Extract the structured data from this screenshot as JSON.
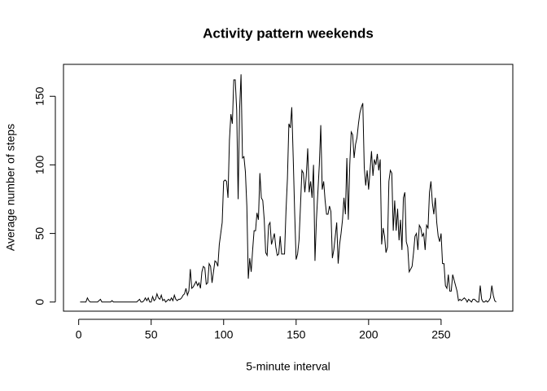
{
  "chart_data": {
    "type": "line",
    "title": "Activity pattern weekends",
    "x_label": "5-minute interval",
    "y_label": "Average number of steps",
    "color": "#000000",
    "x": [
      1,
      2,
      3,
      4,
      5,
      6,
      7,
      8,
      9,
      10,
      11,
      12,
      13,
      14,
      15,
      16,
      17,
      18,
      19,
      20,
      21,
      22,
      23,
      24,
      25,
      26,
      27,
      28,
      29,
      30,
      31,
      32,
      33,
      34,
      35,
      36,
      37,
      38,
      39,
      40,
      41,
      42,
      43,
      44,
      45,
      46,
      47,
      48,
      49,
      50,
      51,
      52,
      53,
      54,
      55,
      56,
      57,
      58,
      59,
      60,
      61,
      62,
      63,
      64,
      65,
      66,
      67,
      68,
      69,
      70,
      71,
      72,
      73,
      74,
      75,
      76,
      77,
      78,
      79,
      80,
      81,
      82,
      83,
      84,
      85,
      86,
      87,
      88,
      89,
      90,
      91,
      92,
      93,
      94,
      95,
      96,
      97,
      98,
      99,
      100,
      101,
      102,
      103,
      104,
      105,
      106,
      107,
      108,
      109,
      110,
      111,
      112,
      113,
      114,
      115,
      116,
      117,
      118,
      119,
      120,
      121,
      122,
      123,
      124,
      125,
      126,
      127,
      128,
      129,
      130,
      131,
      132,
      133,
      134,
      135,
      136,
      137,
      138,
      139,
      140,
      141,
      142,
      143,
      144,
      145,
      146,
      147,
      148,
      149,
      150,
      151,
      152,
      153,
      154,
      155,
      156,
      157,
      158,
      159,
      160,
      161,
      162,
      163,
      164,
      165,
      166,
      167,
      168,
      169,
      170,
      171,
      172,
      173,
      174,
      175,
      176,
      177,
      178,
      179,
      180,
      181,
      182,
      183,
      184,
      185,
      186,
      187,
      188,
      189,
      190,
      191,
      192,
      193,
      194,
      195,
      196,
      197,
      198,
      199,
      200,
      201,
      202,
      203,
      204,
      205,
      206,
      207,
      208,
      209,
      210,
      211,
      212,
      213,
      214,
      215,
      216,
      217,
      218,
      219,
      220,
      221,
      222,
      223,
      224,
      225,
      226,
      227,
      228,
      229,
      230,
      231,
      232,
      233,
      234,
      235,
      236,
      237,
      238,
      239,
      240,
      241,
      242,
      243,
      244,
      245,
      246,
      247,
      248,
      249,
      250,
      251,
      252,
      253,
      254,
      255,
      256,
      257,
      258,
      259,
      260,
      261,
      262,
      263,
      264,
      265,
      266,
      267,
      268,
      269,
      270,
      271,
      272,
      273,
      274,
      275,
      276,
      277,
      278,
      279,
      280,
      281,
      282,
      283,
      284,
      285,
      286,
      287,
      288
    ],
    "values": [
      0,
      0,
      0,
      0,
      0,
      3,
      1,
      0,
      0,
      0,
      0,
      0,
      0,
      1,
      2,
      0,
      0,
      0,
      0,
      0,
      0,
      0,
      1,
      0,
      0,
      0,
      0,
      0,
      0,
      0,
      0,
      0,
      0,
      0,
      0,
      0,
      0,
      0,
      0,
      0,
      1,
      2,
      0,
      0,
      1,
      3,
      1,
      3,
      0,
      0,
      4,
      1,
      2,
      6,
      3,
      2,
      5,
      1,
      2,
      0,
      1,
      2,
      1,
      3,
      1,
      5,
      2,
      1,
      2,
      2,
      3,
      5,
      6,
      10,
      5,
      8,
      24,
      10,
      11,
      13,
      15,
      12,
      14,
      10,
      22,
      26,
      25,
      13,
      14,
      28,
      26,
      14,
      22,
      30,
      29,
      26,
      42,
      50,
      58,
      88,
      89,
      88,
      76,
      118,
      137,
      130,
      162,
      162,
      140,
      75,
      140,
      166,
      105,
      106,
      95,
      70,
      17,
      32,
      22,
      38,
      52,
      52,
      65,
      60,
      94,
      76,
      74,
      60,
      36,
      34,
      56,
      58,
      42,
      46,
      50,
      40,
      34,
      35,
      48,
      35,
      35,
      35,
      66,
      90,
      130,
      127,
      142,
      105,
      65,
      31,
      35,
      45,
      70,
      96,
      94,
      80,
      92,
      112,
      80,
      88,
      76,
      100,
      30,
      60,
      80,
      100,
      129,
      82,
      88,
      74,
      64,
      64,
      70,
      66,
      32,
      38,
      48,
      58,
      28,
      42,
      50,
      60,
      76,
      64,
      105,
      60,
      100,
      124,
      122,
      105,
      115,
      120,
      130,
      138,
      142,
      145,
      98,
      85,
      96,
      82,
      96,
      110,
      92,
      104,
      100,
      108,
      96,
      104,
      42,
      54,
      48,
      36,
      40,
      88,
      96,
      94,
      52,
      74,
      52,
      68,
      45,
      60,
      38,
      76,
      80,
      44,
      40,
      22,
      24,
      26,
      36,
      48,
      50,
      38,
      56,
      54,
      48,
      50,
      38,
      56,
      54,
      80,
      88,
      72,
      64,
      76,
      58,
      48,
      44,
      50,
      28,
      28,
      12,
      10,
      20,
      8,
      8,
      20,
      16,
      12,
      8,
      1,
      2,
      1,
      2,
      3,
      2,
      0,
      2,
      1,
      0,
      2,
      2,
      1,
      0,
      0,
      12,
      2,
      0,
      0,
      1,
      0,
      1,
      3,
      12,
      5,
      1,
      0
    ],
    "xlim": [
      -10.48,
      299.48
    ],
    "xticks": [
      0,
      50,
      100,
      150,
      200,
      250
    ],
    "ylim": [
      -6.66,
      173.3
    ],
    "yticks": [
      0,
      50,
      100,
      150
    ]
  }
}
